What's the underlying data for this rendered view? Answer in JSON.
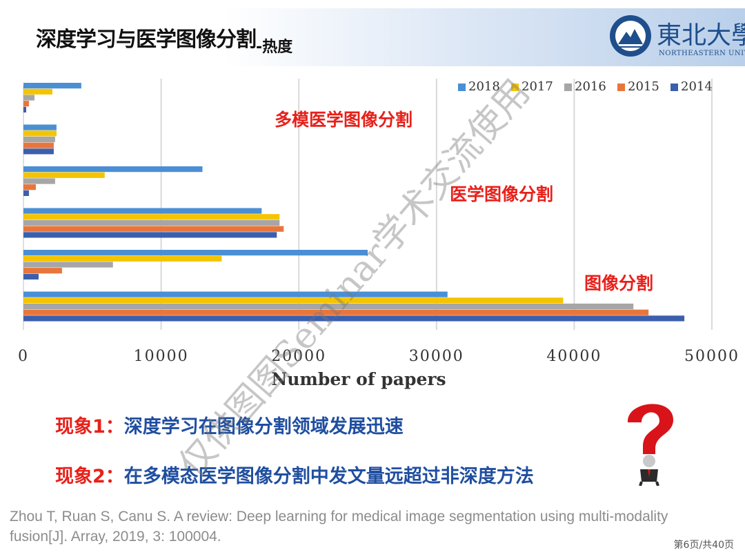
{
  "header": {
    "title": "深度学习与医学图像分割",
    "title_suffix": "-热度",
    "university_name": "東北大學",
    "university_en": "NORTHEASTERN UNIVERSITY"
  },
  "chart_data": {
    "type": "bar",
    "orientation": "horizontal",
    "category_annotations": [
      "多模医学图像分割",
      "医学图像分割",
      "图像分割"
    ],
    "series": [
      {
        "name": "2018",
        "color": "#4a8fd4",
        "values": [
          4200,
          2400,
          13000,
          17300,
          25000,
          30800
        ]
      },
      {
        "name": "2017",
        "color": "#f5c400",
        "values": [
          2100,
          2400,
          5900,
          18600,
          14400,
          39200
        ]
      },
      {
        "name": "2016",
        "color": "#a6a6a6",
        "values": [
          800,
          2300,
          2300,
          18600,
          6500,
          44300
        ]
      },
      {
        "name": "2015",
        "color": "#e8763c",
        "values": [
          400,
          2200,
          900,
          18900,
          2800,
          45400
        ]
      },
      {
        "name": "2014",
        "color": "#3c5fad",
        "values": [
          200,
          2200,
          400,
          18400,
          1100,
          48000
        ]
      }
    ],
    "legend_order": [
      "2018",
      "2017",
      "2016",
      "2015",
      "2014"
    ],
    "legend_position": "top-right",
    "xlim": [
      0,
      50000
    ],
    "xticks": [
      0,
      10000,
      20000,
      30000,
      40000,
      50000
    ],
    "xlabel": "Number of papers",
    "grid": true
  },
  "observations": [
    {
      "prefix": "现象1：",
      "text": "深度学习在图像分割领域发展迅速"
    },
    {
      "prefix": "现象2：",
      "text": "在多模态医学图像分割中发文量远超过非深度方法"
    }
  ],
  "reference": "Zhou T, Ruan S, Canu S. A review: Deep learning for medical image segmentation using multi-modality fusion[J]. Array, 2019, 3: 100004.",
  "page_label": "第6页/共40页",
  "watermark": "仅供图图Seminar学术交流使用",
  "colors": {
    "accent_red": "#e8201a",
    "accent_blue": "#1f4ea0",
    "brand_blue": "#1f4e8c"
  }
}
